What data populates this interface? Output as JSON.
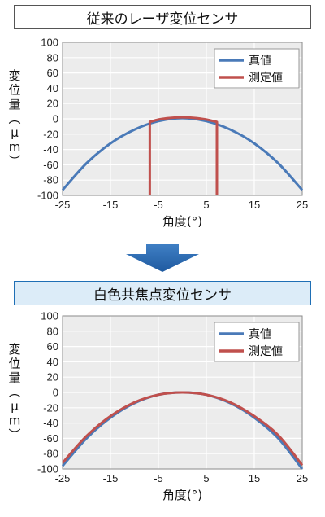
{
  "chart_data": [
    {
      "type": "line",
      "title": "従来のレーザ変位センサ",
      "xlabel": "角度(°)",
      "ylabel": "変位量(μm)",
      "xlim": [
        -25,
        25
      ],
      "ylim": [
        -100,
        100
      ],
      "xticks": [
        -25,
        -15,
        -5,
        5,
        15,
        25
      ],
      "yticks": [
        100,
        80,
        60,
        40,
        20,
        0,
        -20,
        -40,
        -60,
        -80,
        -100
      ],
      "grid": true,
      "legend_position": "top-right",
      "series": [
        {
          "name": "真値",
          "color": "#4a7ab8",
          "x": [
            -25,
            -20,
            -15,
            -10,
            -5,
            0,
            5,
            10,
            15,
            20,
            25
          ],
          "y": [
            -93,
            -58,
            -32,
            -14,
            -3,
            1,
            -3,
            -14,
            -32,
            -58,
            -93
          ]
        },
        {
          "name": "測定値",
          "color": "#c0504d",
          "x": [
            -6.8,
            -6.8,
            -5,
            -3,
            0,
            3,
            5,
            7.2,
            7.2
          ],
          "y": [
            -100,
            -4,
            -1,
            1,
            2,
            1,
            -1,
            -4,
            -100
          ]
        }
      ]
    },
    {
      "type": "line",
      "title": "白色共焦点変位センサ",
      "xlabel": "角度(°)",
      "ylabel": "変位量(μm)",
      "xlim": [
        -25,
        25
      ],
      "ylim": [
        -100,
        100
      ],
      "xticks": [
        -25,
        -15,
        -5,
        5,
        15,
        25
      ],
      "yticks": [
        100,
        80,
        60,
        40,
        20,
        0,
        -20,
        -40,
        -60,
        -80,
        -100
      ],
      "grid": true,
      "legend_position": "top-right",
      "series": [
        {
          "name": "真値",
          "color": "#4a7ab8",
          "x": [
            -25,
            -20,
            -15,
            -10,
            -5,
            0,
            5,
            10,
            15,
            20,
            25
          ],
          "y": [
            -96,
            -60,
            -33,
            -14,
            -3,
            0,
            -3,
            -14,
            -33,
            -60,
            -100
          ]
        },
        {
          "name": "測定値",
          "color": "#c0504d",
          "x": [
            -25,
            -20,
            -15,
            -10,
            -5,
            0,
            5,
            10,
            15,
            20,
            25
          ],
          "y": [
            -92,
            -57,
            -31,
            -13,
            -3,
            0,
            -3,
            -13,
            -31,
            -56,
            -95
          ]
        }
      ]
    }
  ]
}
